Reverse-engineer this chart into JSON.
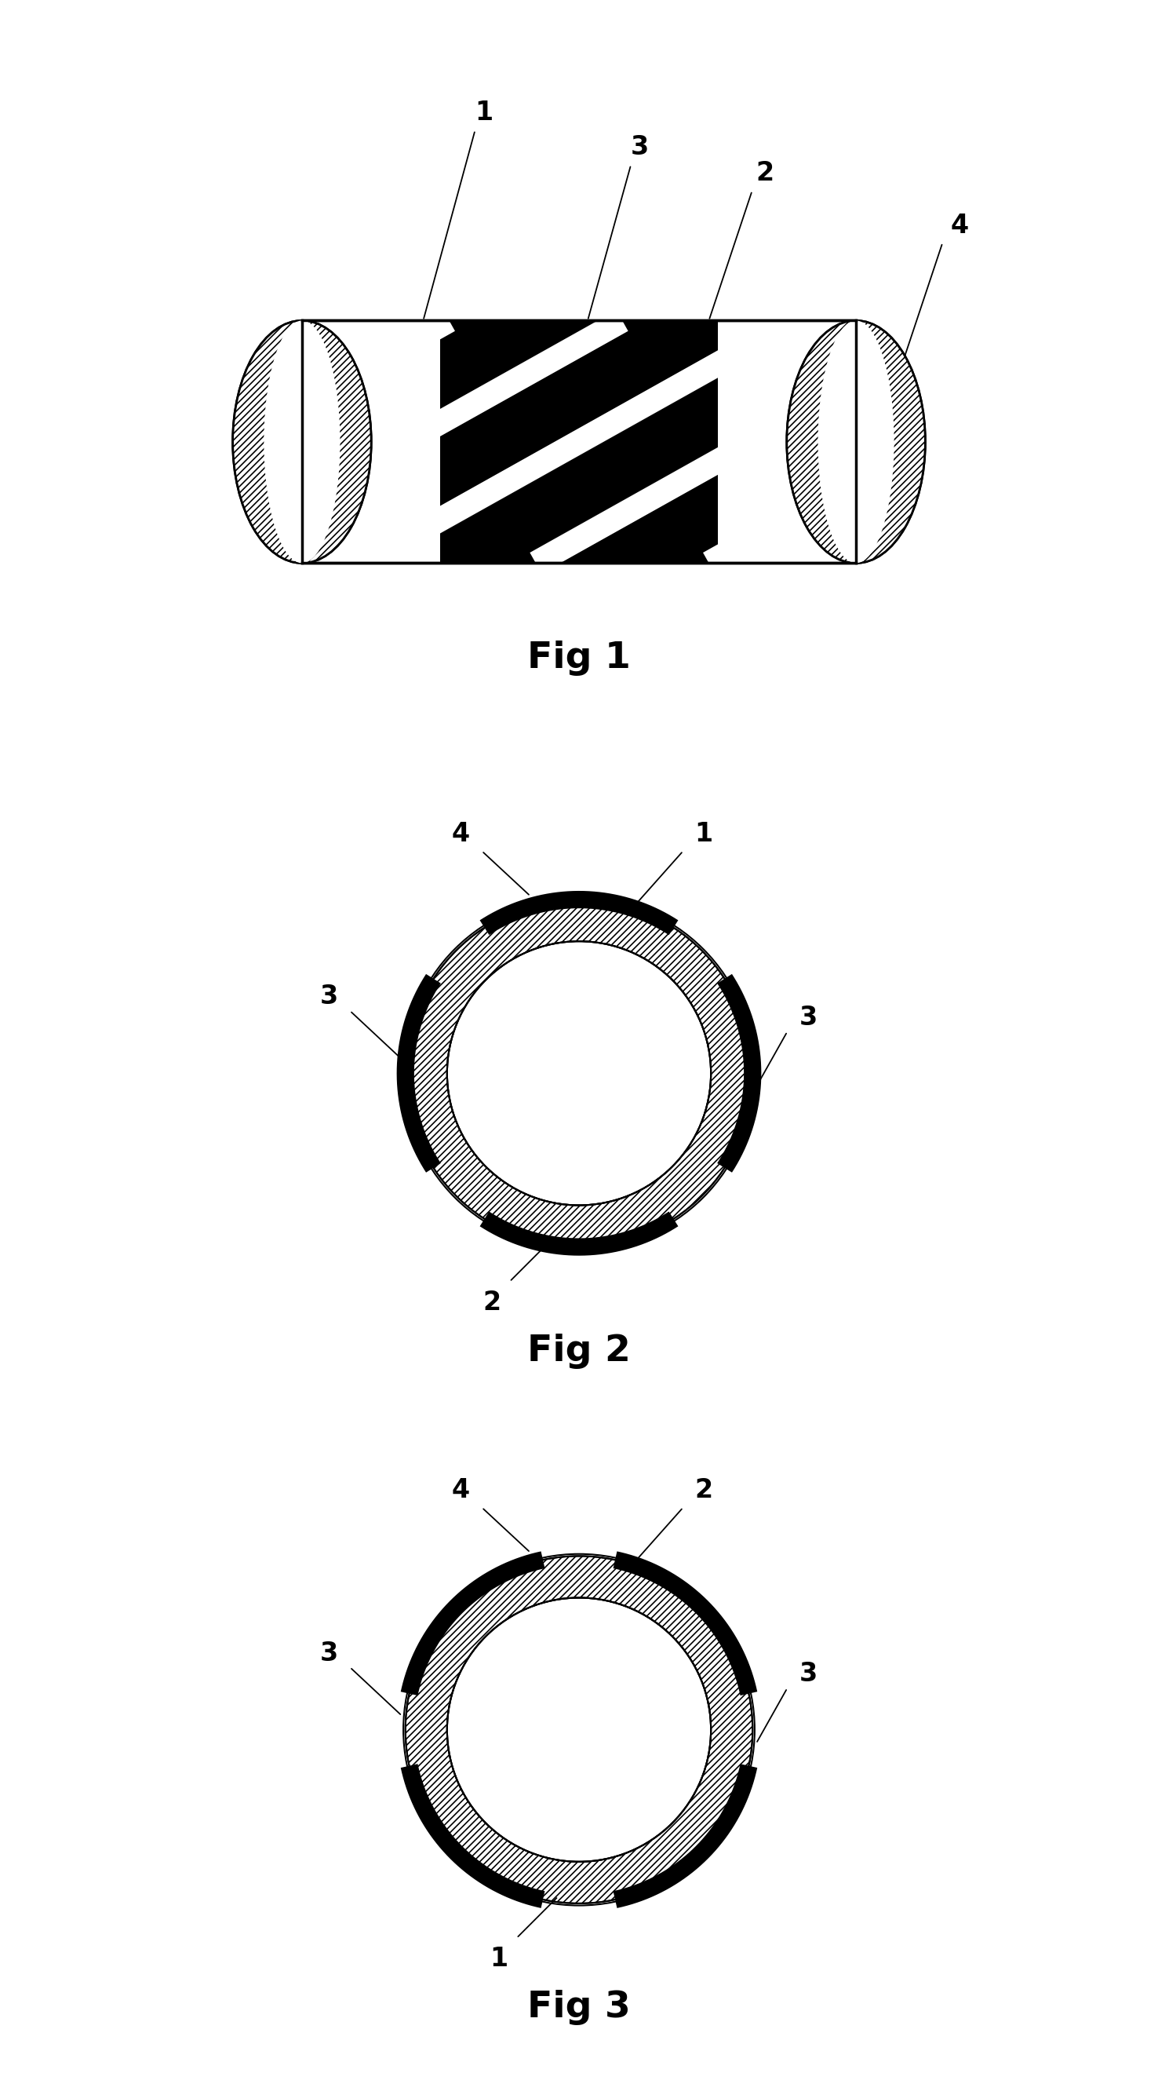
{
  "bg_color": "#ffffff",
  "fig_width": 14.76,
  "fig_height": 26.55,
  "fig1_label": "Fig 1",
  "fig2_label": "Fig 2",
  "fig3_label": "Fig 3",
  "line_color": "#000000",
  "black_fill": "#000000",
  "white_fill": "#ffffff"
}
